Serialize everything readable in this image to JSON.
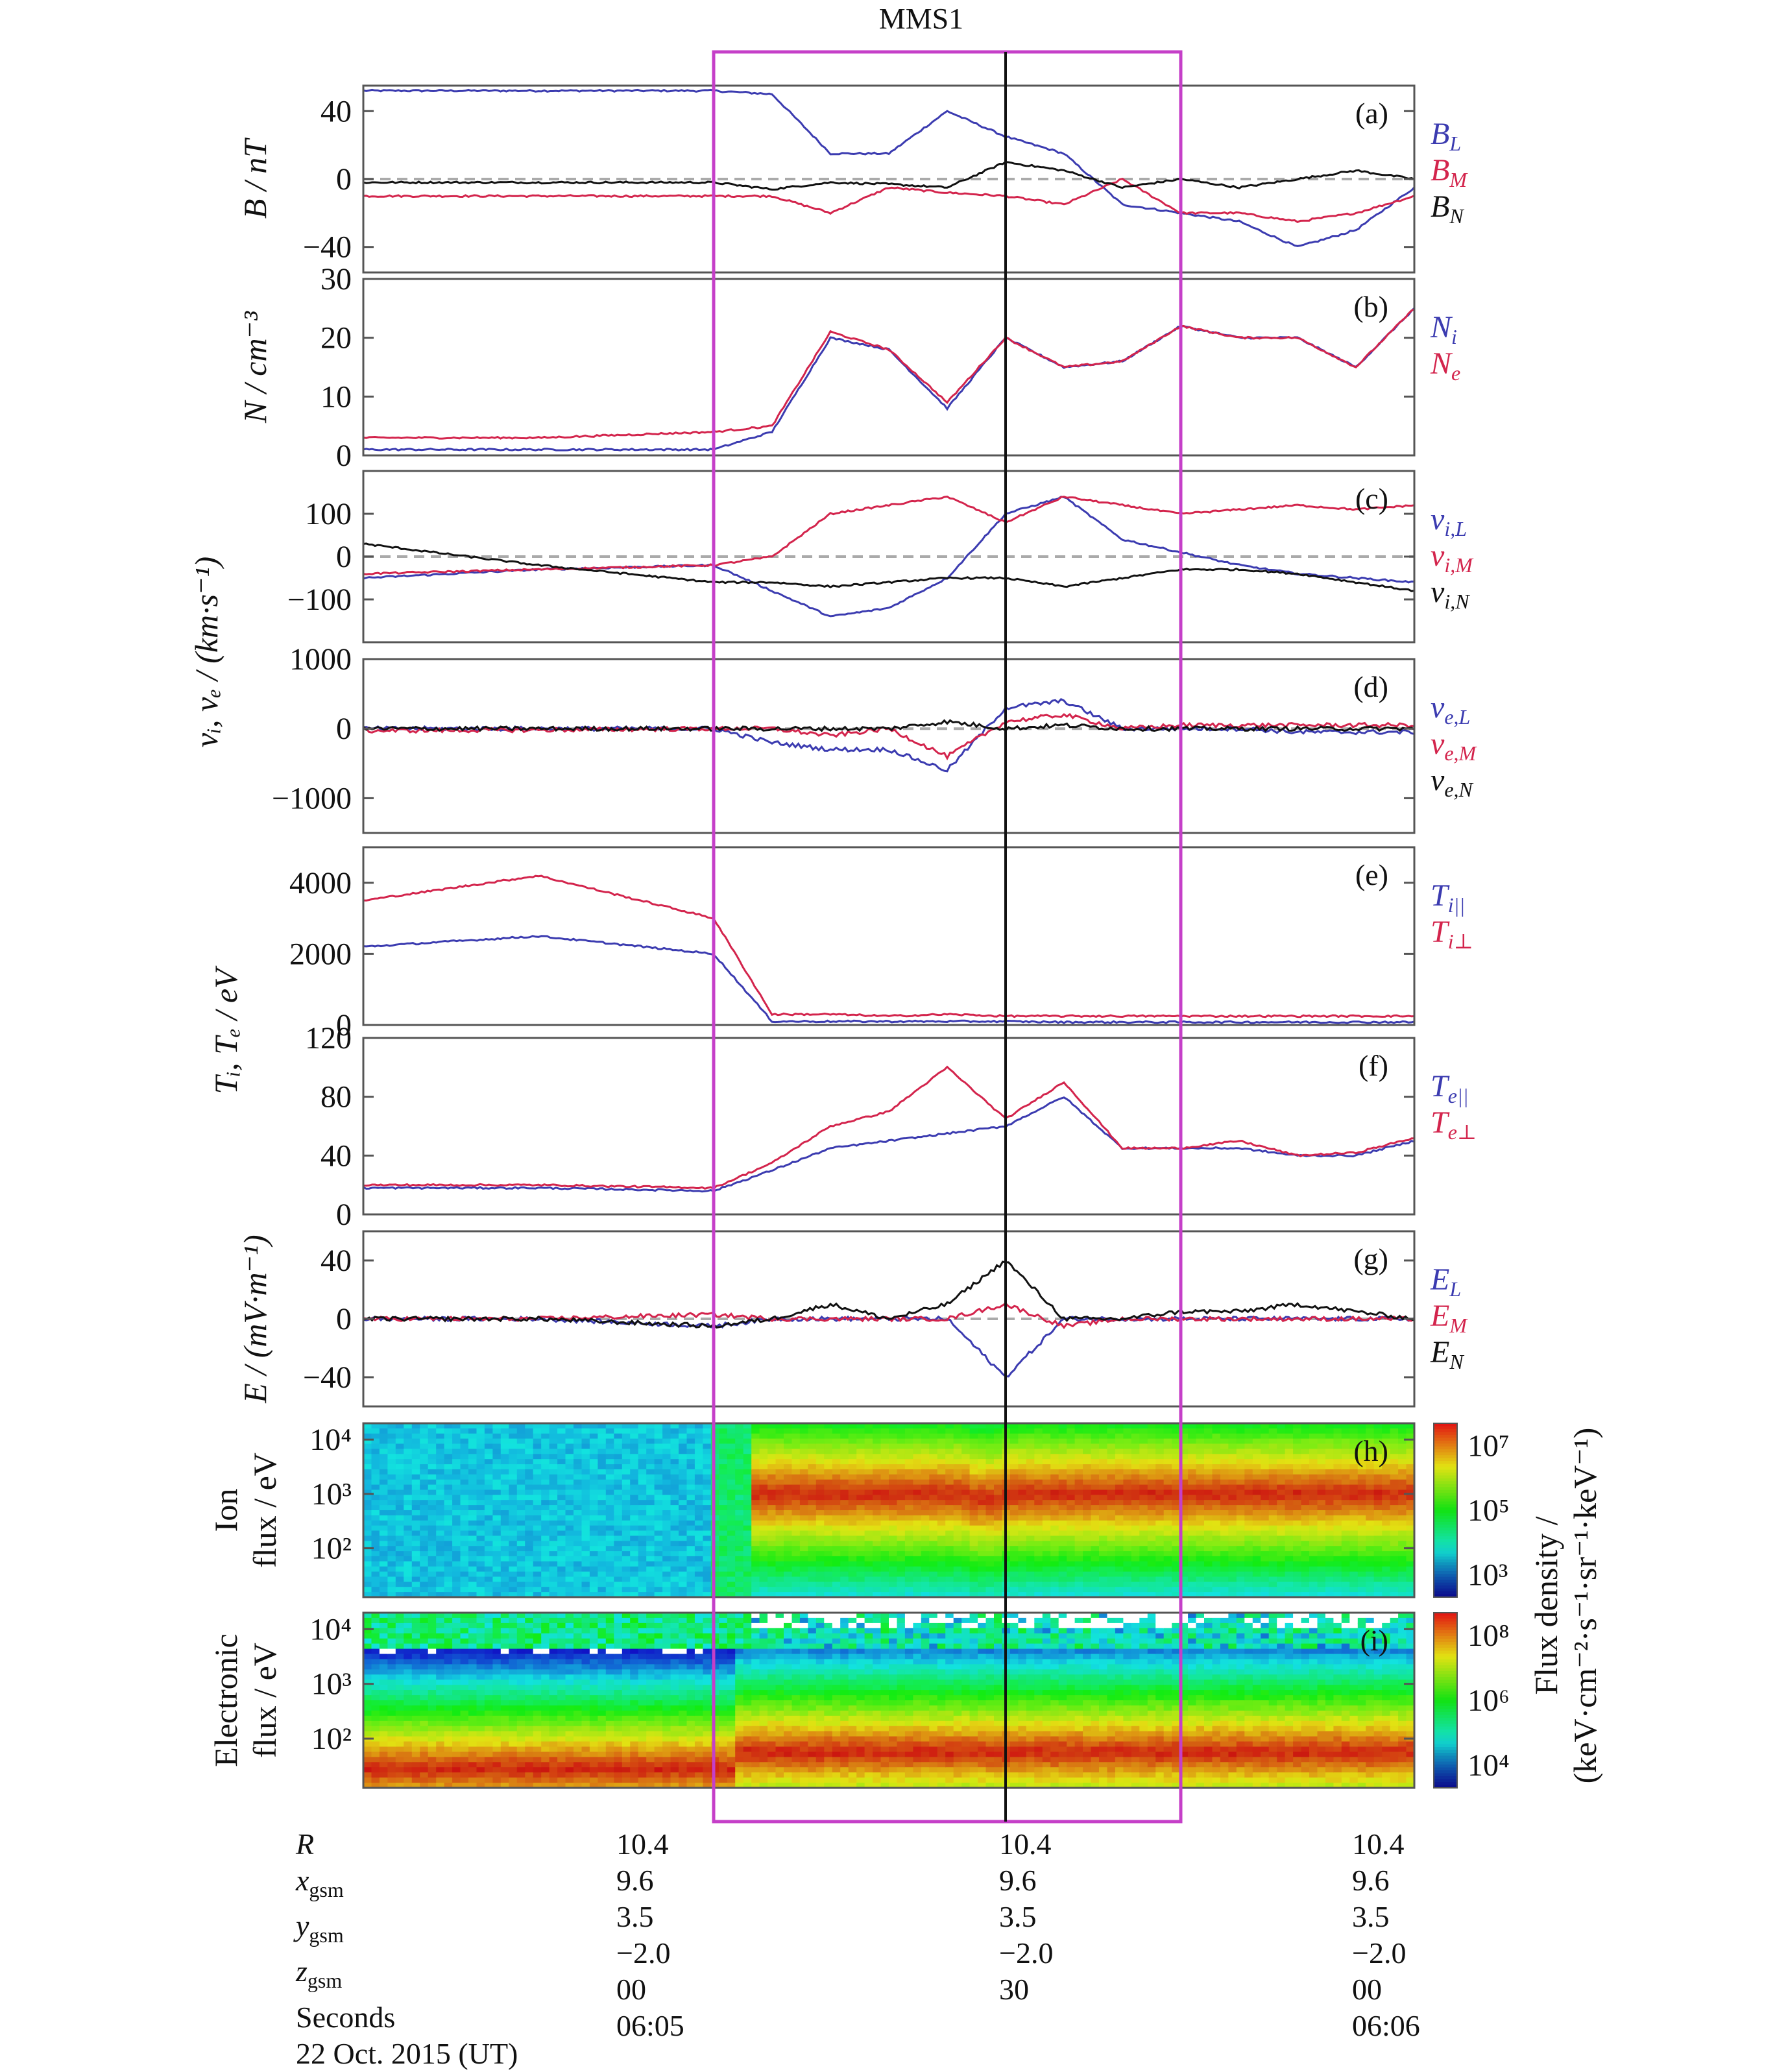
{
  "title": "MMS1",
  "colors": {
    "blue": "#3b3bb0",
    "red": "#d3244c",
    "black": "#111111",
    "box": "#c53fc8",
    "zero_line": "#aaaaaa"
  },
  "panels": [
    {
      "tag": "(a)",
      "ylim": [
        -55,
        55
      ],
      "ticks": [
        "40",
        "0",
        "−40"
      ],
      "tick_values": [
        40,
        0,
        -40
      ],
      "ylabel": "B / nT",
      "legend": [
        {
          "main": "B",
          "sub": "L",
          "color": "#3b3bb0"
        },
        {
          "main": "B",
          "sub": "M",
          "color": "#d3244c"
        },
        {
          "main": "B",
          "sub": "N",
          "color": "#111111"
        }
      ]
    },
    {
      "tag": "(b)",
      "ylim": [
        0,
        30
      ],
      "ticks": [
        "30",
        "20",
        "10",
        "0"
      ],
      "tick_values": [
        30,
        20,
        10,
        0
      ],
      "ylabel": "N / cm⁻³",
      "legend": [
        {
          "main": "N",
          "sub": "i",
          "color": "#3b3bb0"
        },
        {
          "main": "N",
          "sub": "e",
          "color": "#d3244c"
        }
      ]
    },
    {
      "tag": "(c)",
      "ylim": [
        -200,
        200
      ],
      "ticks": [
        "100",
        "0",
        "−100"
      ],
      "tick_values": [
        100,
        0,
        -100
      ],
      "ylabel": "",
      "legend": [
        {
          "main": "v",
          "sub": "i,L",
          "color": "#3b3bb0"
        },
        {
          "main": "v",
          "sub": "i,M",
          "color": "#d3244c"
        },
        {
          "main": "v",
          "sub": "i,N",
          "color": "#111111"
        }
      ]
    },
    {
      "tag": "(d)",
      "ylim": [
        -1500,
        1000
      ],
      "ticks": [
        "1000",
        "0",
        "−1000"
      ],
      "tick_values": [
        1000,
        0,
        -1000
      ],
      "ylabel": "",
      "legend": [
        {
          "main": "v",
          "sub": "e,L",
          "color": "#3b3bb0"
        },
        {
          "main": "v",
          "sub": "e,M",
          "color": "#d3244c"
        },
        {
          "main": "v",
          "sub": "e,N",
          "color": "#111111"
        }
      ]
    },
    {
      "tag": "(e)",
      "ylim": [
        0,
        5000
      ],
      "ticks": [
        "4000",
        "2000",
        "0"
      ],
      "tick_values": [
        4000,
        2000,
        0
      ],
      "ylabel": "",
      "legend": [
        {
          "main": "T",
          "sub": "i||",
          "color": "#3b3bb0"
        },
        {
          "main": "T",
          "sub": "i⊥",
          "color": "#d3244c"
        }
      ]
    },
    {
      "tag": "(f)",
      "ylim": [
        0,
        120
      ],
      "ticks": [
        "120",
        "80",
        "40",
        "0"
      ],
      "tick_values": [
        120,
        80,
        40,
        0
      ],
      "ylabel": "",
      "legend": [
        {
          "main": "T",
          "sub": "e||",
          "color": "#3b3bb0"
        },
        {
          "main": "T",
          "sub": "e⊥",
          "color": "#d3244c"
        }
      ]
    },
    {
      "tag": "(g)",
      "ylim": [
        -60,
        60
      ],
      "ticks": [
        "40",
        "0",
        "−40"
      ],
      "tick_values": [
        40,
        0,
        -40
      ],
      "ylabel": "E / (mV·m⁻¹)",
      "legend": [
        {
          "main": "E",
          "sub": "L",
          "color": "#3b3bb0"
        },
        {
          "main": "E",
          "sub": "M",
          "color": "#d3244c"
        },
        {
          "main": "E",
          "sub": "N",
          "color": "#111111"
        }
      ]
    },
    {
      "tag": "(h)",
      "ticks": [
        "10⁴",
        "10³",
        "10²"
      ],
      "tick_values": [
        4,
        3,
        2
      ],
      "ylim": [
        1.1,
        4.3
      ],
      "ylabel_lines": [
        "Ion",
        "flux / eV"
      ]
    },
    {
      "tag": "(i)",
      "ticks": [
        "10⁴",
        "10³",
        "10²"
      ],
      "tick_values": [
        4,
        3,
        2
      ],
      "ylim": [
        1.1,
        4.3
      ],
      "ylabel_lines": [
        "Electronic",
        "flux / eV"
      ]
    }
  ],
  "shared_ylabels": {
    "velocity": "vᵢ, vₑ / (km·s⁻¹)",
    "temperature": "Tᵢ, Tₑ / eV"
  },
  "colorbars": {
    "ion": {
      "ticks": [
        "10⁷",
        "10⁵",
        "10³"
      ],
      "tick_values": [
        7,
        5,
        3
      ],
      "range": [
        2.3,
        7.7
      ]
    },
    "electron": {
      "ticks": [
        "10⁸",
        "10⁶",
        "10⁴"
      ],
      "tick_values": [
        8,
        6,
        4
      ],
      "range": [
        3.3,
        8.7
      ]
    },
    "label_lines": [
      "Flux density /",
      "(keV·cm⁻²·s⁻¹·sr⁻¹·keV⁻¹)"
    ]
  },
  "bottom_table": {
    "row_labels": [
      {
        "main": "R",
        "sub": ""
      },
      {
        "main": "x",
        "sub": "gsm"
      },
      {
        "main": "y",
        "sub": "gsm"
      },
      {
        "main": "z",
        "sub": "gsm"
      },
      {
        "main": "Seconds",
        "sub": ""
      },
      {
        "main": "22 Oct. 2015 (UT)",
        "sub": ""
      }
    ],
    "columns": [
      [
        "10.4",
        "9.6",
        "3.5",
        "−2.0",
        "00",
        "06:05"
      ],
      [
        "10.4",
        "9.6",
        "3.5",
        "−2.0",
        "30",
        ""
      ],
      [
        "10.4",
        "9.6",
        "3.5",
        "−2.0",
        "00",
        "06:06"
      ]
    ]
  },
  "chart_data": {
    "type": "line",
    "x_unit": "seconds after 06:05:00 UT (22 Oct. 2015)",
    "x": [
      -30,
      -15,
      0,
      5,
      10,
      15,
      20,
      25,
      30,
      35,
      40,
      45,
      50,
      55,
      60
    ],
    "xlim": [
      -30,
      60
    ],
    "shaded_interval": [
      0,
      40
    ],
    "marker_line": 25,
    "panels": [
      {
        "tag": "(a)",
        "series": [
          {
            "name": "B_L",
            "values": [
              52,
              52,
              52,
              50,
              15,
              15,
              40,
              25,
              15,
              -15,
              -20,
              -25,
              -40,
              -30,
              -5
            ]
          },
          {
            "name": "B_M",
            "values": [
              -10,
              -10,
              -10,
              -10,
              -20,
              -5,
              -8,
              -10,
              -15,
              0,
              -20,
              -20,
              -25,
              -20,
              -10
            ]
          },
          {
            "name": "B_N",
            "values": [
              -2,
              -2,
              -2,
              -6,
              -2,
              -3,
              -5,
              10,
              5,
              -5,
              0,
              -5,
              0,
              5,
              0
            ]
          }
        ]
      },
      {
        "tag": "(b)",
        "series": [
          {
            "name": "N_i",
            "values": [
              1,
              1,
              1,
              4,
              20,
              18,
              8,
              20,
              15,
              16,
              22,
              20,
              20,
              15,
              25
            ]
          },
          {
            "name": "N_e",
            "values": [
              3,
              3,
              4,
              5,
              21,
              18,
              9,
              20,
              15,
              16,
              22,
              20,
              20,
              15,
              25
            ]
          }
        ]
      },
      {
        "tag": "(c)",
        "series": [
          {
            "name": "v_i,L",
            "values": [
              -50,
              -30,
              -20,
              -80,
              -140,
              -120,
              -50,
              100,
              140,
              40,
              10,
              -20,
              -40,
              -50,
              -60
            ]
          },
          {
            "name": "v_i,M",
            "values": [
              -40,
              -30,
              -20,
              0,
              100,
              120,
              140,
              80,
              140,
              120,
              100,
              110,
              120,
              110,
              120
            ]
          },
          {
            "name": "v_i,N",
            "values": [
              30,
              -20,
              -60,
              -60,
              -70,
              -60,
              -50,
              -50,
              -70,
              -50,
              -30,
              -30,
              -40,
              -60,
              -80
            ]
          }
        ]
      },
      {
        "tag": "(d)",
        "series": [
          {
            "name": "v_e,L",
            "values": [
              0,
              0,
              0,
              -200,
              -300,
              -300,
              -600,
              300,
              400,
              0,
              0,
              0,
              -50,
              -50,
              -50
            ]
          },
          {
            "name": "v_e,M",
            "values": [
              -30,
              -20,
              0,
              0,
              -100,
              0,
              -400,
              100,
              200,
              0,
              50,
              50,
              50,
              50,
              50
            ]
          },
          {
            "name": "v_e,N",
            "values": [
              0,
              0,
              0,
              0,
              0,
              0,
              100,
              0,
              50,
              0,
              0,
              0,
              0,
              0,
              0
            ]
          }
        ]
      },
      {
        "tag": "(e)",
        "series": [
          {
            "name": "T_i||",
            "values": [
              2200,
              2500,
              2000,
              100,
              100,
              100,
              100,
              100,
              80,
              80,
              80,
              80,
              80,
              80,
              80
            ]
          },
          {
            "name": "T_i⊥",
            "values": [
              3500,
              4200,
              3000,
              300,
              300,
              250,
              300,
              250,
              250,
              250,
              250,
              250,
              250,
              250,
              250
            ]
          }
        ]
      },
      {
        "tag": "(f)",
        "series": [
          {
            "name": "T_e||",
            "values": [
              18,
              18,
              16,
              30,
              45,
              50,
              55,
              60,
              80,
              45,
              45,
              45,
              40,
              40,
              50
            ]
          },
          {
            "name": "T_e⊥",
            "values": [
              20,
              20,
              18,
              35,
              60,
              70,
              100,
              65,
              90,
              45,
              45,
              50,
              40,
              42,
              52
            ]
          }
        ]
      },
      {
        "tag": "(g)",
        "series": [
          {
            "name": "E_L",
            "values": [
              0,
              0,
              -5,
              0,
              0,
              0,
              0,
              -40,
              0,
              0,
              0,
              0,
              0,
              0,
              0
            ]
          },
          {
            "name": "E_M",
            "values": [
              0,
              0,
              3,
              0,
              0,
              0,
              0,
              10,
              -5,
              0,
              0,
              0,
              0,
              0,
              0
            ]
          },
          {
            "name": "E_N",
            "values": [
              0,
              0,
              -5,
              0,
              10,
              0,
              10,
              40,
              0,
              0,
              5,
              5,
              10,
              5,
              0
            ]
          }
        ]
      }
    ]
  }
}
